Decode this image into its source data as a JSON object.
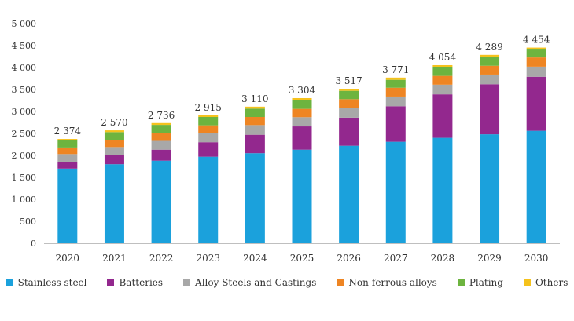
{
  "chart_data": {
    "type": "bar",
    "stacked": true,
    "categories": [
      "2020",
      "2021",
      "2022",
      "2023",
      "2024",
      "2025",
      "2026",
      "2027",
      "2028",
      "2029",
      "2030"
    ],
    "totals": [
      2374,
      2570,
      2736,
      2915,
      3110,
      3304,
      3517,
      3771,
      4054,
      4289,
      4454
    ],
    "total_labels": [
      "2 374",
      "2 570",
      "2 736",
      "2 915",
      "3 110",
      "3 304",
      "3 517",
      "3 771",
      "4 054",
      "4 289",
      "4 454"
    ],
    "series": [
      {
        "name": "Stainless steel",
        "color": "#1ba1dc",
        "values": [
          1700,
          1800,
          1880,
          1970,
          2050,
          2130,
          2220,
          2310,
          2400,
          2480,
          2560
        ]
      },
      {
        "name": "Batteries",
        "color": "#93288e",
        "values": [
          150,
          200,
          250,
          330,
          420,
          530,
          640,
          810,
          990,
          1140,
          1230
        ]
      },
      {
        "name": "Alloy Steels and Castings",
        "color": "#a8a8a8",
        "values": [
          180,
          190,
          200,
          210,
          220,
          210,
          220,
          220,
          220,
          220,
          230
        ]
      },
      {
        "name": "Non-ferrous alloys",
        "color": "#ee8523",
        "values": [
          150,
          155,
          170,
          175,
          185,
          190,
          200,
          200,
          200,
          200,
          210
        ]
      },
      {
        "name": "Plating",
        "color": "#6db43f",
        "values": [
          160,
          185,
          195,
          190,
          190,
          200,
          190,
          180,
          190,
          200,
          180
        ]
      },
      {
        "name": "Others",
        "color": "#f5c21c",
        "values": [
          34,
          40,
          41,
          40,
          45,
          44,
          47,
          51,
          54,
          49,
          44
        ]
      }
    ],
    "ylim": [
      0,
      5000
    ],
    "y_ticks": [
      0,
      500,
      1000,
      1500,
      2000,
      2500,
      3000,
      3500,
      4000,
      4500,
      5000
    ],
    "y_tick_labels": [
      "0",
      "500",
      "1 000",
      "1 500",
      "2 000",
      "2 500",
      "3 000",
      "3 500",
      "4 000",
      "4 500",
      "5 000"
    ],
    "grid": false,
    "legend_position": "bottom"
  }
}
